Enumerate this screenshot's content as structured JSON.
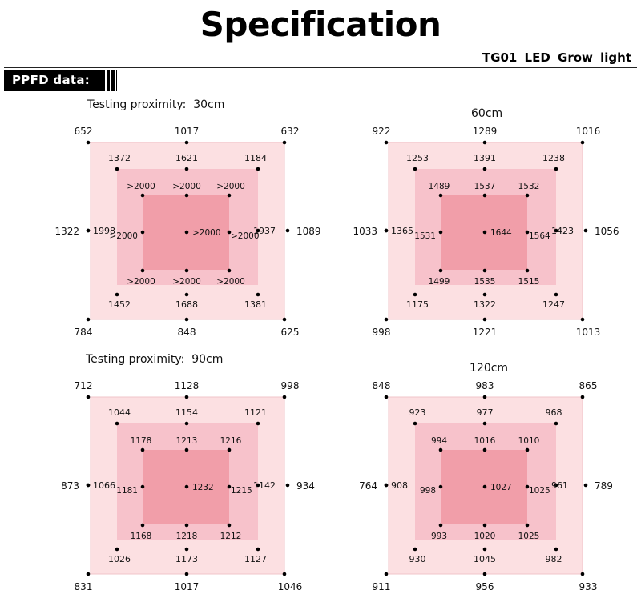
{
  "header": {
    "title": "Specification",
    "product": "TG01  LED  Grow  light",
    "section_badge": "PPFD data:"
  },
  "colors": {
    "outer": "#fce0e2",
    "middle": "#f7c2cb",
    "inner": "#f19ea9",
    "dot": "#000000"
  },
  "panels": [
    {
      "heading": "Testing proximity:  30cm",
      "outer": {
        "tl": "652",
        "tm": "1017",
        "tr": "632",
        "ml": "1322",
        "mr": "1089",
        "bl": "784",
        "bm": "848",
        "br": "625"
      },
      "middle": {
        "tl": "1372",
        "tm": "1621",
        "tr": "1184",
        "ml": "1998",
        "mr": "1937",
        "bl": "1452",
        "bm": "1688",
        "br": "1381"
      },
      "inner": {
        "tl": ">2000",
        "tm": ">2000",
        "tr": ">2000",
        "ml": ">2000",
        "c": ">2000",
        "mr": ">2000",
        "bl": ">2000",
        "bm": ">2000",
        "br": ">2000"
      }
    },
    {
      "heading": "60cm",
      "outer": {
        "tl": "922",
        "tm": "1289",
        "tr": "1016",
        "ml": "1033",
        "mr": "1056",
        "bl": "998",
        "bm": "1221",
        "br": "1013"
      },
      "middle": {
        "tl": "1253",
        "tm": "1391",
        "tr": "1238",
        "ml": "1365",
        "mr": "1423",
        "bl": "1175",
        "bm": "1322",
        "br": "1247"
      },
      "inner": {
        "tl": "1489",
        "tm": "1537",
        "tr": "1532",
        "ml": "1531",
        "c": "1644",
        "mr": "1564",
        "bl": "1499",
        "bm": "1535",
        "br": "1515"
      }
    },
    {
      "heading": "Testing proximity:  90cm",
      "outer": {
        "tl": "712",
        "tm": "1128",
        "tr": "998",
        "ml": "873",
        "mr": "934",
        "bl": "831",
        "bm": "1017",
        "br": "1046"
      },
      "middle": {
        "tl": "1044",
        "tm": "1154",
        "tr": "1121",
        "ml": "1066",
        "mr": "1142",
        "bl": "1026",
        "bm": "1173",
        "br": "1127"
      },
      "inner": {
        "tl": "1178",
        "tm": "1213",
        "tr": "1216",
        "ml": "1181",
        "c": "1232",
        "mr": "1215",
        "bl": "1168",
        "bm": "1218",
        "br": "1212"
      }
    },
    {
      "heading": "120cm",
      "outer": {
        "tl": "848",
        "tm": "983",
        "tr": "865",
        "ml": "764",
        "mr": "789",
        "bl": "911",
        "bm": "956",
        "br": "933"
      },
      "middle": {
        "tl": "923",
        "tm": "977",
        "tr": "968",
        "ml": "908",
        "mr": "961",
        "bl": "930",
        "bm": "1045",
        "br": "982"
      },
      "inner": {
        "tl": "994",
        "tm": "1016",
        "tr": "1010",
        "ml": "998",
        "c": "1027",
        "mr": "1025",
        "bl": "993",
        "bm": "1020",
        "br": "1025"
      }
    }
  ]
}
